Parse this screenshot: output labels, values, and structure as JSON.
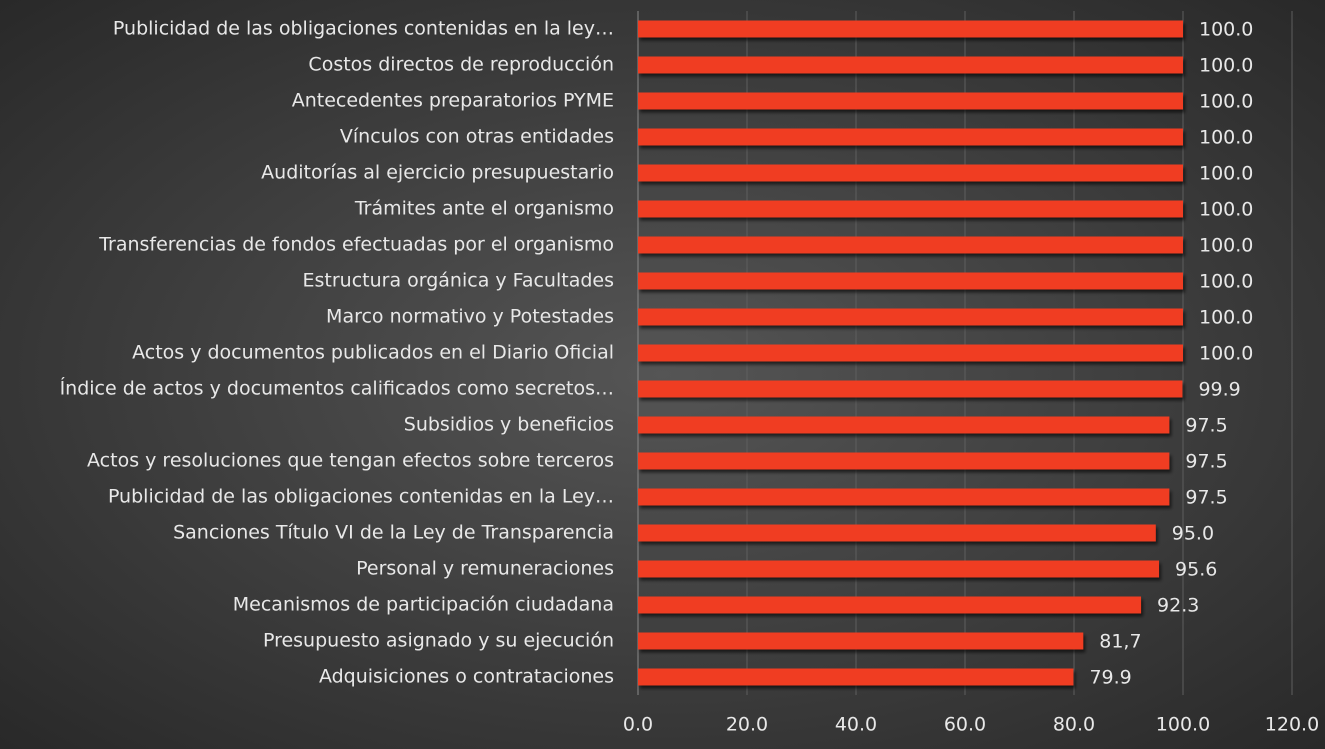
{
  "chart_data": {
    "type": "bar",
    "orientation": "horizontal",
    "categories": [
      "Publicidad de las obligaciones contenidas en la ley…",
      "Costos directos de reproducción",
      "Antecedentes preparatorios PYME",
      "Vínculos con otras entidades",
      "Auditorías al ejercicio presupuestario",
      "Trámites ante el organismo",
      "Transferencias de fondos efectuadas por el organismo",
      "Estructura orgánica y Facultades",
      "Marco normativo y Potestades",
      "Actos y documentos publicados en el Diario Oficial",
      "Índice de actos y documentos calificados como secretos…",
      "Subsidios y beneficios",
      "Actos y resoluciones que tengan efectos sobre terceros",
      "Publicidad de las obligaciones contenidas en la Ley…",
      "Sanciones Título VI de la Ley de Transparencia",
      "Personal y remuneraciones",
      "Mecanismos de participación ciudadana",
      "Presupuesto asignado y su ejecución",
      "Adquisiciones o contrataciones"
    ],
    "values": [
      100,
      100,
      100,
      100,
      100,
      100,
      100,
      100,
      100,
      100,
      99.9,
      97.5,
      97.5,
      97.5,
      95.0,
      95.6,
      92.3,
      81.7,
      79.9
    ],
    "value_labels": [
      "100.0",
      "100.0",
      "100.0",
      "100.0",
      "100.0",
      "100.0",
      "100.0",
      "100.0",
      "100.0",
      "100.0",
      "99.9",
      "97.5",
      "97.5",
      "97.5",
      "95.0",
      "95.6",
      "92.3",
      "81,7",
      "79.9"
    ],
    "color": "#f03d24",
    "xlim": [
      0,
      120
    ],
    "xticks": [
      {
        "value": 0,
        "label": "0.0"
      },
      {
        "value": 20,
        "label": "20.0"
      },
      {
        "value": 40,
        "label": "40.0"
      },
      {
        "value": 60,
        "label": "60.0"
      },
      {
        "value": 80,
        "label": "80.0"
      },
      {
        "value": 100,
        "label": "100.0"
      },
      {
        "value": 120,
        "label": "120.0"
      }
    ],
    "grid": true
  }
}
